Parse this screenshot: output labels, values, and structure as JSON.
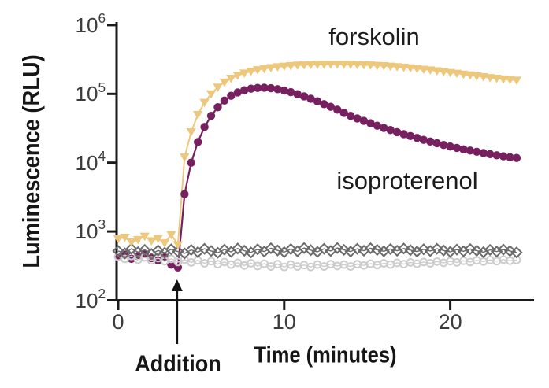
{
  "figure": {
    "description": "Kinetic luminescence time-course plot with ligand addition annotation",
    "background_color": "#ffffff",
    "axis_color": "#1a1a1a",
    "tick_label_color": "#3c3c3c",
    "annotation_arrow_color": "#111111"
  },
  "labels": {
    "forskolin": "forskolin",
    "isoproterenol": "isoproterenol"
  },
  "chart_data": {
    "type": "scatter",
    "title": "",
    "xlabel": "Time (minutes)",
    "ylabel": "Luminescence (RLU)",
    "x_scale": "linear",
    "y_scale": "log",
    "xlim": [
      0,
      25
    ],
    "ylim": [
      100,
      1000000
    ],
    "grid": false,
    "legend_position": "inline-text-labels",
    "annotation": {
      "text": "Addition",
      "x_minutes": 3.55,
      "arrow": "up"
    },
    "x_ticks": [
      {
        "label": "0",
        "value": 0
      },
      {
        "label": "10",
        "value": 10
      },
      {
        "label": "20",
        "value": 20
      }
    ],
    "y_ticks": [
      {
        "base": "10",
        "exp": "6",
        "value": 1000000
      },
      {
        "base": "10",
        "exp": "5",
        "value": 100000
      },
      {
        "base": "10",
        "exp": "4",
        "value": 10000
      },
      {
        "base": "10",
        "exp": "3",
        "value": 1000
      },
      {
        "base": "10",
        "exp": "2",
        "value": 100
      }
    ],
    "x": [
      0,
      0.4,
      0.8,
      1.2,
      1.6,
      2,
      2.4,
      2.8,
      3.2,
      3.6,
      4,
      4.4,
      4.8,
      5.2,
      5.6,
      6,
      6.4,
      6.8,
      7.2,
      7.6,
      8,
      8.4,
      8.8,
      9.2,
      9.6,
      10,
      10.4,
      10.8,
      11.2,
      11.6,
      12,
      12.4,
      12.8,
      13.2,
      13.6,
      14,
      14.4,
      14.8,
      15.2,
      15.6,
      16,
      16.4,
      16.8,
      17.2,
      17.6,
      18,
      18.4,
      18.8,
      19.2,
      19.6,
      20,
      20.4,
      20.8,
      21.2,
      21.6,
      22,
      22.4,
      22.8,
      23.2,
      23.6,
      24
    ],
    "series": [
      {
        "id": "forskolin",
        "name": "forskolin",
        "marker": "triangle-down-filled",
        "color": "#edc87c",
        "line_width": 2,
        "values": [
          780,
          820,
          700,
          760,
          850,
          730,
          790,
          680,
          900,
          640,
          12000,
          28000,
          50000,
          75000,
          100000,
          125000,
          148000,
          168000,
          186000,
          200000,
          213000,
          224000,
          233000,
          240000,
          247000,
          252000,
          257000,
          261000,
          264000,
          266000,
          268000,
          269000,
          270000,
          270000,
          269000,
          268000,
          266000,
          264000,
          262000,
          259000,
          256000,
          252000,
          248000,
          243000,
          238000,
          233000,
          227000,
          222000,
          216000,
          210000,
          204000,
          199000,
          193000,
          188000,
          182000,
          177000,
          172000,
          168000,
          164000,
          161000,
          158000
        ]
      },
      {
        "id": "isoproterenol",
        "name": "isoproterenol",
        "marker": "circle-filled",
        "color": "#772060",
        "line_width": 2.2,
        "values": [
          430,
          460,
          400,
          440,
          470,
          410,
          380,
          420,
          330,
          300,
          3500,
          10000,
          20000,
          33000,
          48000,
          64000,
          80000,
          94000,
          105000,
          113000,
          119000,
          122000,
          123000,
          121000,
          117000,
          112000,
          106000,
          99000,
          92000,
          85000,
          78000,
          71000,
          65000,
          59000,
          53000,
          48000,
          44000,
          40500,
          37500,
          34500,
          32000,
          29800,
          27800,
          26000,
          24400,
          22900,
          21500,
          20300,
          19200,
          18100,
          17200,
          16400,
          15600,
          15000,
          14400,
          13800,
          13300,
          12800,
          12400,
          12000,
          11700
        ]
      },
      {
        "id": "control-open-circles",
        "name": "",
        "marker": "circle-open",
        "color": "#cccccc",
        "line_width": 1.4,
        "values": [
          430,
          400,
          440,
          390,
          420,
          380,
          410,
          370,
          400,
          360,
          390,
          355,
          380,
          345,
          370,
          335,
          360,
          330,
          350,
          320,
          345,
          315,
          340,
          310,
          335,
          305,
          330,
          310,
          325,
          305,
          330,
          310,
          335,
          315,
          330,
          310,
          335,
          320,
          340,
          325,
          345,
          330,
          350,
          335,
          355,
          340,
          360,
          345,
          365,
          350,
          370,
          355,
          375,
          360,
          380,
          365,
          385,
          370,
          390,
          375,
          385
        ]
      },
      {
        "id": "control-open-diamonds",
        "name": "",
        "marker": "diamond-open",
        "color": "#6b6b6b",
        "line_width": 1.4,
        "values": [
          520,
          480,
          560,
          500,
          540,
          470,
          530,
          490,
          550,
          510,
          480,
          540,
          500,
          560,
          520,
          490,
          545,
          505,
          565,
          525,
          495,
          550,
          510,
          570,
          530,
          500,
          555,
          515,
          575,
          535,
          505,
          560,
          520,
          575,
          540,
          510,
          560,
          525,
          570,
          540,
          515,
          555,
          525,
          565,
          535,
          510,
          550,
          520,
          560,
          530,
          505,
          545,
          515,
          555,
          525,
          500,
          540,
          510,
          545,
          520,
          495
        ]
      }
    ]
  }
}
